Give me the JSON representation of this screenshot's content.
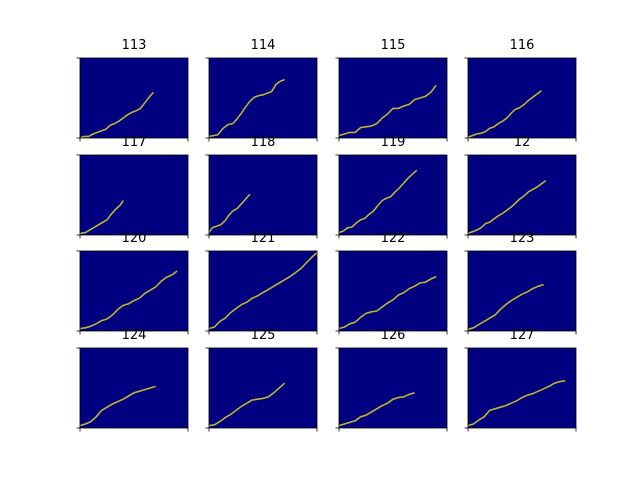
{
  "colors": {
    "background": "#000080",
    "line": "#BDB52E",
    "axis": "#000000",
    "figure": "#ffffff"
  },
  "chart_data": {
    "type": "line",
    "layout": "4x4 small multiples",
    "xlim": [
      0,
      100
    ],
    "ylim": [
      0,
      100
    ],
    "grid": false,
    "panels": [
      {
        "title": "113",
        "x": [
          0,
          4,
          8,
          12,
          16,
          20,
          24,
          28,
          32,
          36,
          40,
          44,
          48,
          52,
          56,
          60,
          64,
          68
        ],
        "y": [
          0,
          2,
          2,
          5,
          7,
          9,
          11,
          16,
          18,
          21,
          25,
          29,
          32,
          34,
          37,
          44,
          51,
          57
        ]
      },
      {
        "title": "114",
        "x": [
          0,
          4,
          8,
          10,
          13,
          18,
          22,
          26,
          30,
          34,
          38,
          42,
          46,
          50,
          54,
          58,
          62,
          66,
          70
        ],
        "y": [
          2,
          3,
          4,
          7,
          12,
          17,
          18,
          24,
          31,
          39,
          46,
          51,
          53,
          54,
          56,
          58,
          67,
          71,
          73
        ]
      },
      {
        "title": "115",
        "x": [
          0,
          5,
          10,
          15,
          20,
          25,
          30,
          35,
          40,
          45,
          50,
          55,
          60,
          65,
          70,
          75,
          80,
          85,
          90
        ],
        "y": [
          3,
          5,
          7,
          7,
          13,
          14,
          15,
          18,
          25,
          30,
          37,
          37,
          40,
          42,
          48,
          50,
          52,
          57,
          66
        ]
      },
      {
        "title": "116",
        "x": [
          0,
          4,
          8,
          12,
          16,
          20,
          24,
          28,
          32,
          36,
          40,
          44,
          48,
          52,
          56,
          60,
          64,
          68
        ],
        "y": [
          1,
          3,
          5,
          6,
          8,
          12,
          14,
          18,
          21,
          25,
          31,
          36,
          38,
          42,
          47,
          51,
          55,
          59
        ]
      },
      {
        "title": "117",
        "x": [
          0,
          5,
          10,
          15,
          20,
          25,
          29,
          33,
          37,
          40
        ],
        "y": [
          2,
          3,
          7,
          11,
          15,
          19,
          26,
          32,
          37,
          43
        ]
      },
      {
        "title": "118",
        "x": [
          0,
          3,
          7,
          11,
          15,
          18,
          22,
          26,
          30,
          34,
          38
        ],
        "y": [
          3,
          9,
          11,
          13,
          18,
          24,
          30,
          33,
          39,
          45,
          51
        ]
      },
      {
        "title": "119",
        "x": [
          0,
          4,
          8,
          12,
          16,
          20,
          24,
          28,
          32,
          36,
          40,
          44,
          48,
          52,
          56,
          60,
          64,
          68,
          72
        ],
        "y": [
          3,
          5,
          9,
          10,
          15,
          19,
          21,
          26,
          30,
          37,
          43,
          46,
          48,
          54,
          59,
          65,
          71,
          76,
          81
        ]
      },
      {
        "title": "12",
        "x": [
          0,
          4,
          8,
          12,
          16,
          20,
          24,
          28,
          32,
          36,
          40,
          44,
          48,
          52,
          56,
          60,
          64,
          68,
          72
        ],
        "y": [
          2,
          4,
          6,
          9,
          14,
          16,
          20,
          24,
          27,
          31,
          35,
          40,
          45,
          49,
          54,
          57,
          60,
          64,
          68
        ]
      },
      {
        "title": "120",
        "x": [
          0,
          5,
          10,
          15,
          20,
          25,
          30,
          35,
          40,
          45,
          50,
          55,
          60,
          65,
          70,
          75,
          80,
          85,
          90
        ],
        "y": [
          3,
          4,
          6,
          9,
          13,
          15,
          20,
          27,
          32,
          34,
          38,
          41,
          47,
          51,
          55,
          62,
          67,
          70,
          75
        ]
      },
      {
        "title": "121",
        "x": [
          0,
          5,
          10,
          15,
          20,
          25,
          30,
          35,
          40,
          45,
          50,
          55,
          60,
          65,
          70,
          75,
          80,
          85,
          90,
          95,
          100
        ],
        "y": [
          3,
          5,
          12,
          16,
          23,
          28,
          33,
          36,
          41,
          44,
          48,
          52,
          56,
          60,
          64,
          68,
          73,
          78,
          85,
          92,
          98
        ]
      },
      {
        "title": "122",
        "x": [
          0,
          5,
          10,
          15,
          20,
          25,
          30,
          35,
          40,
          45,
          50,
          55,
          60,
          65,
          70,
          75,
          80,
          85,
          90
        ],
        "y": [
          3,
          5,
          9,
          11,
          17,
          22,
          24,
          25,
          30,
          35,
          39,
          45,
          48,
          53,
          56,
          60,
          61,
          65,
          68
        ]
      },
      {
        "title": "123",
        "x": [
          0,
          5,
          10,
          15,
          20,
          25,
          30,
          35,
          40,
          45,
          50,
          55,
          60,
          65,
          70
        ],
        "y": [
          2,
          4,
          8,
          12,
          16,
          20,
          27,
          33,
          38,
          42,
          46,
          49,
          53,
          56,
          58
        ]
      },
      {
        "title": "124",
        "x": [
          0,
          5,
          10,
          15,
          20,
          25,
          30,
          35,
          40,
          45,
          50,
          55,
          60,
          65,
          70
        ],
        "y": [
          3,
          5,
          8,
          14,
          22,
          26,
          30,
          33,
          36,
          40,
          44,
          46,
          48,
          50,
          52
        ]
      },
      {
        "title": "125",
        "x": [
          0,
          5,
          10,
          15,
          20,
          25,
          30,
          35,
          40,
          45,
          50,
          55,
          60,
          65,
          70
        ],
        "y": [
          3,
          4,
          8,
          13,
          17,
          22,
          27,
          31,
          35,
          36,
          37,
          39,
          44,
          50,
          56
        ]
      },
      {
        "title": "126",
        "x": [
          0,
          5,
          10,
          15,
          20,
          25,
          30,
          35,
          40,
          45,
          50,
          55,
          60,
          65,
          70
        ],
        "y": [
          3,
          5,
          7,
          9,
          14,
          16,
          20,
          24,
          28,
          31,
          36,
          38,
          39,
          42,
          44
        ]
      },
      {
        "title": "127",
        "x": [
          0,
          5,
          10,
          15,
          20,
          25,
          30,
          35,
          40,
          45,
          50,
          55,
          60,
          65,
          70,
          75,
          80,
          85,
          90
        ],
        "y": [
          3,
          5,
          10,
          14,
          22,
          24,
          26,
          28,
          31,
          34,
          38,
          41,
          43,
          46,
          49,
          52,
          56,
          58,
          59
        ]
      }
    ]
  }
}
